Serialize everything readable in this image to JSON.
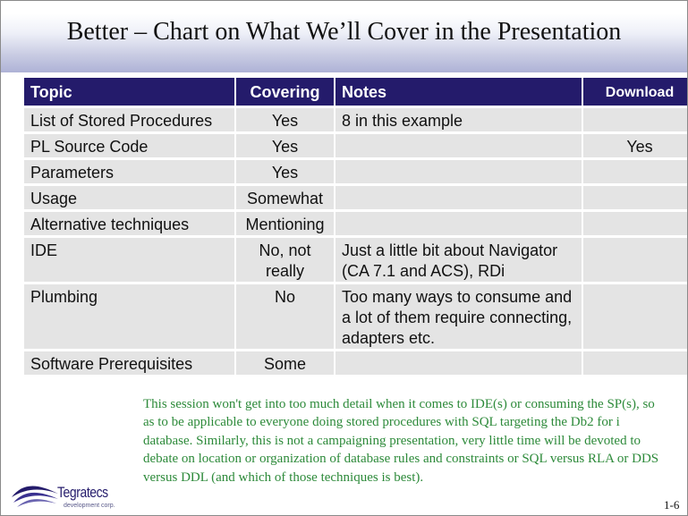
{
  "slide": {
    "title": "Better – Chart on What We’ll Cover in the Presentation",
    "page_number": "1-6"
  },
  "table": {
    "headers": {
      "topic": "Topic",
      "covering": "Covering",
      "notes": "Notes",
      "download": "Download"
    },
    "rows": [
      {
        "topic": "List of Stored Procedures",
        "covering": "Yes",
        "notes": "8 in this example",
        "download": ""
      },
      {
        "topic": "PL Source Code",
        "covering": "Yes",
        "notes": "",
        "download": "Yes"
      },
      {
        "topic": "Parameters",
        "covering": "Yes",
        "notes": "",
        "download": ""
      },
      {
        "topic": "Usage",
        "covering": "Somewhat",
        "notes": "",
        "download": ""
      },
      {
        "topic": "Alternative techniques",
        "covering": "Mentioning",
        "notes": "",
        "download": ""
      },
      {
        "topic": "IDE",
        "covering": "No, not really",
        "notes": "Just a little bit about Navigator (CA 7.1 and ACS), RDi",
        "download": ""
      },
      {
        "topic": "Plumbing",
        "covering": "No",
        "notes": "Too many ways to consume and a lot of them require connecting, adapters etc.",
        "download": ""
      },
      {
        "topic": "Software Prerequisites",
        "covering": "Some",
        "notes": "",
        "download": ""
      }
    ]
  },
  "note": "This session won't get into too much detail when it comes to IDE(s) or consuming the SP(s), so as to be applicable to everyone doing stored procedures with SQL targeting the Db2 for i database.  Similarly, this is not a campaigning presentation, very little time will be devoted to debate on location or organization of database rules and constraints or SQL versus RLA or DDS versus DDL (and which of those techniques is best).",
  "logo": {
    "name": "Tegratecs",
    "tagline": "development corp.",
    "icon": "swoosh-logo-icon"
  },
  "colors": {
    "header_bg": "#241b6b",
    "cell_bg": "#e4e4e4",
    "note_text": "#2d8a3a",
    "title_band": "#aeb2d6"
  }
}
